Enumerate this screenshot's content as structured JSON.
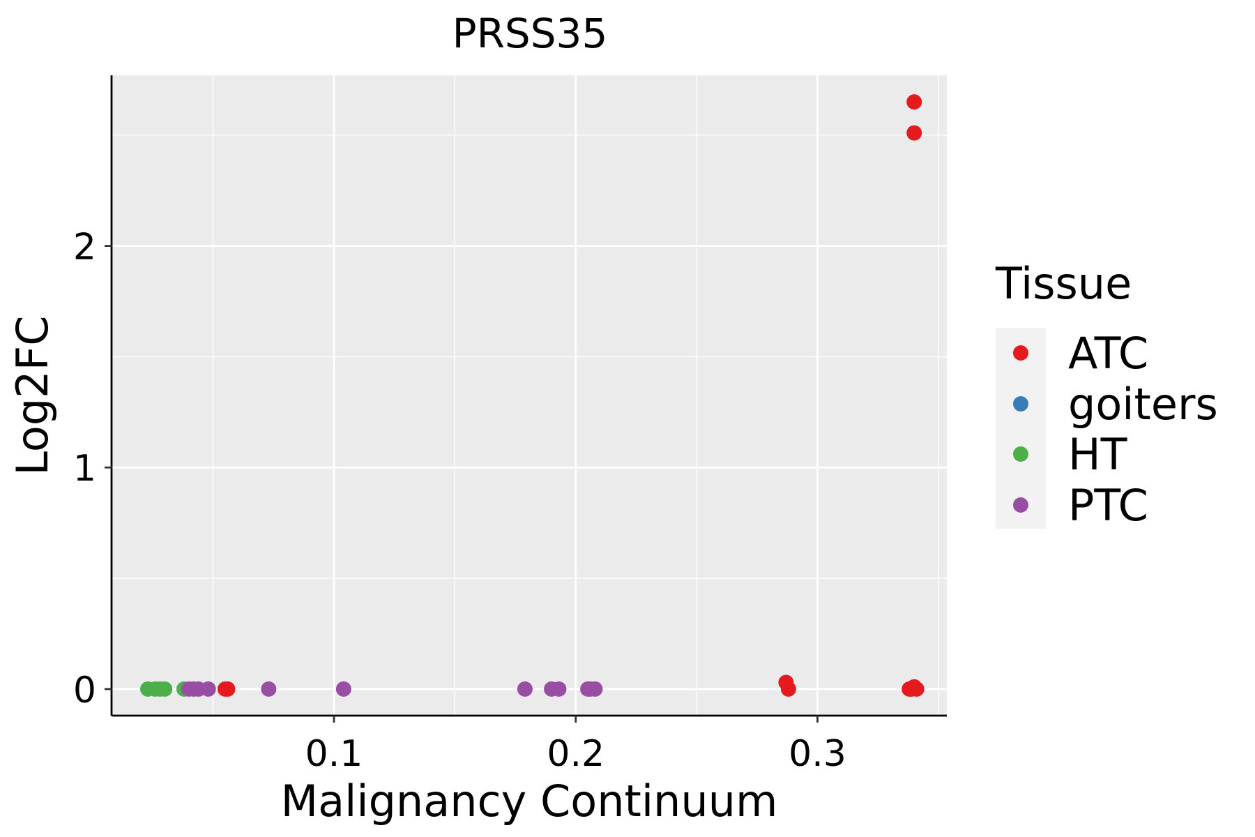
{
  "chart_data": {
    "type": "scatter",
    "title": "PRSS35",
    "xlabel": "Malignancy Continuum",
    "ylabel": "Log2FC",
    "xlim": [
      0.008,
      0.3535
    ],
    "ylim": [
      -0.12,
      2.77
    ],
    "x_ticks": [
      0.1,
      0.2,
      0.3
    ],
    "x_tick_labels": [
      "0.1",
      "0.2",
      "0.3"
    ],
    "y_ticks": [
      0,
      1,
      2
    ],
    "y_tick_labels": [
      "0",
      "1",
      "2"
    ],
    "x_minor_gridlines": [
      0.05,
      0.15,
      0.25,
      0.35
    ],
    "y_minor_gridlines": [
      0.5,
      1.5,
      2.5
    ],
    "grid": true,
    "legend": {
      "title": "Tissue",
      "position": "right",
      "entries": [
        "ATC",
        "goiters",
        "HT",
        "PTC"
      ]
    },
    "series": [
      {
        "name": "ATC",
        "color": "#E41A1C",
        "points": [
          {
            "x": 0.055,
            "y": 0.0
          },
          {
            "x": 0.056,
            "y": 0.0
          },
          {
            "x": 0.287,
            "y": 0.03
          },
          {
            "x": 0.288,
            "y": 0.0
          },
          {
            "x": 0.338,
            "y": 0.0
          },
          {
            "x": 0.339,
            "y": 0.0
          },
          {
            "x": 0.34,
            "y": 0.01
          },
          {
            "x": 0.341,
            "y": 0.0
          },
          {
            "x": 0.34,
            "y": 2.65
          },
          {
            "x": 0.34,
            "y": 2.51
          }
        ]
      },
      {
        "name": "goiters",
        "color": "#377EB8",
        "points": []
      },
      {
        "name": "HT",
        "color": "#4DAF4A",
        "points": [
          {
            "x": 0.023,
            "y": 0.0
          },
          {
            "x": 0.026,
            "y": 0.0
          },
          {
            "x": 0.028,
            "y": 0.0
          },
          {
            "x": 0.03,
            "y": 0.0
          },
          {
            "x": 0.038,
            "y": 0.0
          }
        ]
      },
      {
        "name": "PTC",
        "color": "#984EA3",
        "points": [
          {
            "x": 0.04,
            "y": 0.0
          },
          {
            "x": 0.042,
            "y": 0.0
          },
          {
            "x": 0.044,
            "y": 0.0
          },
          {
            "x": 0.048,
            "y": 0.0
          },
          {
            "x": 0.073,
            "y": 0.0
          },
          {
            "x": 0.104,
            "y": 0.0
          },
          {
            "x": 0.179,
            "y": 0.0
          },
          {
            "x": 0.19,
            "y": 0.0
          },
          {
            "x": 0.193,
            "y": 0.0
          },
          {
            "x": 0.205,
            "y": 0.0
          },
          {
            "x": 0.206,
            "y": 0.0
          },
          {
            "x": 0.208,
            "y": 0.0
          }
        ]
      }
    ]
  },
  "colors": {
    "panel_background": "#EBEBEB",
    "gridline": "#FFFFFF",
    "axis_line": "#000000",
    "legend_key_background": "#F2F2F2"
  }
}
